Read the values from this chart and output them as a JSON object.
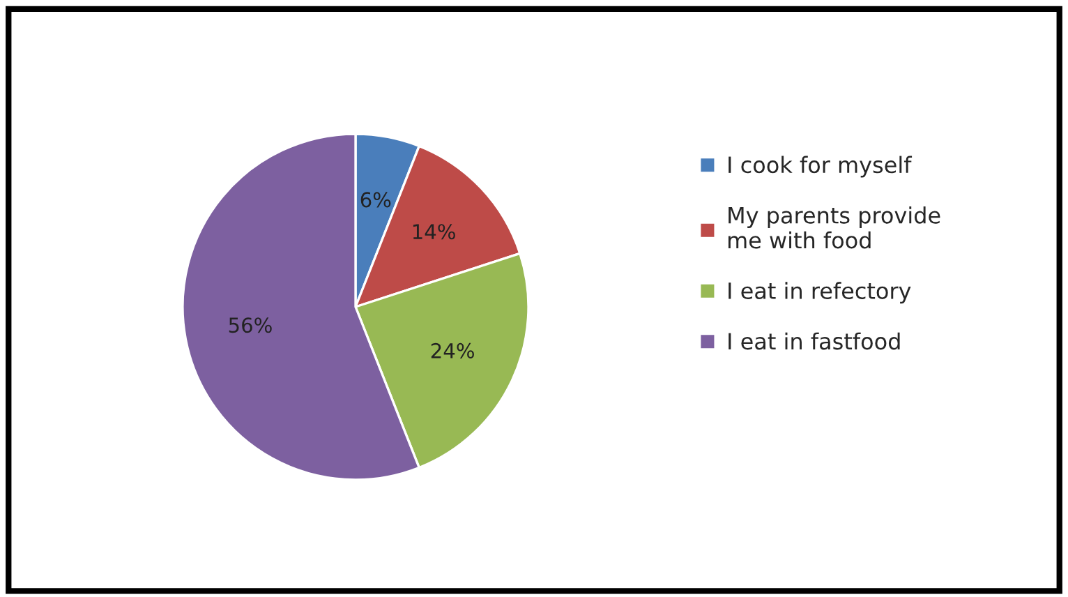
{
  "chart_data": {
    "type": "pie",
    "categories": [
      "I cook for myself",
      "My parents provide me with food",
      "I eat in refectory",
      "I eat in fastfood"
    ],
    "values": [
      6,
      14,
      24,
      56
    ],
    "colors": [
      "#4a7ebb",
      "#be4b48",
      "#98b954",
      "#7d60a0"
    ],
    "value_labels": [
      "6%",
      "14%",
      "24%",
      "56%"
    ],
    "legend": "right"
  }
}
